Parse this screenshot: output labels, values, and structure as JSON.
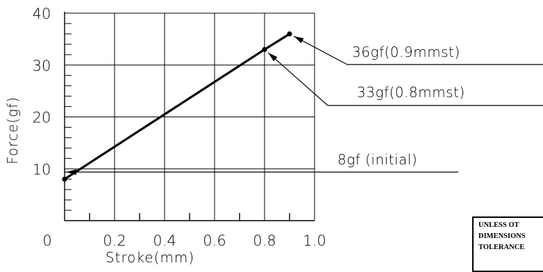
{
  "chart_data": {
    "type": "line",
    "xlabel": "Stroke(mm)",
    "ylabel": "Force(gf)",
    "xlim": [
      0,
      1.0
    ],
    "ylim": [
      0,
      40
    ],
    "x_tick_labels": [
      "0",
      "0.2",
      "0.4",
      "0.6",
      "0.8",
      "1.0"
    ],
    "x_ticks": [
      0,
      0.2,
      0.4,
      0.6,
      0.8,
      1.0
    ],
    "y_tick_labels": [
      "10",
      "20",
      "30",
      "40"
    ],
    "y_ticks": [
      10,
      20,
      30,
      40
    ],
    "grid": true,
    "series": [
      {
        "x": [
          0,
          0.8,
          0.9
        ],
        "y": [
          8,
          33,
          36
        ]
      }
    ],
    "annotations": [
      {
        "text": "36gf(0.9mmst)",
        "x": 0.9,
        "y": 36
      },
      {
        "text": "33gf(0.8mmst)",
        "x": 0.8,
        "y": 33
      },
      {
        "text": "8gf (initial)",
        "x": 0,
        "y": 8
      }
    ]
  },
  "note": {
    "lines": [
      "UNLESS OT",
      "DIMENSIONS",
      "TOLERANCE"
    ]
  }
}
